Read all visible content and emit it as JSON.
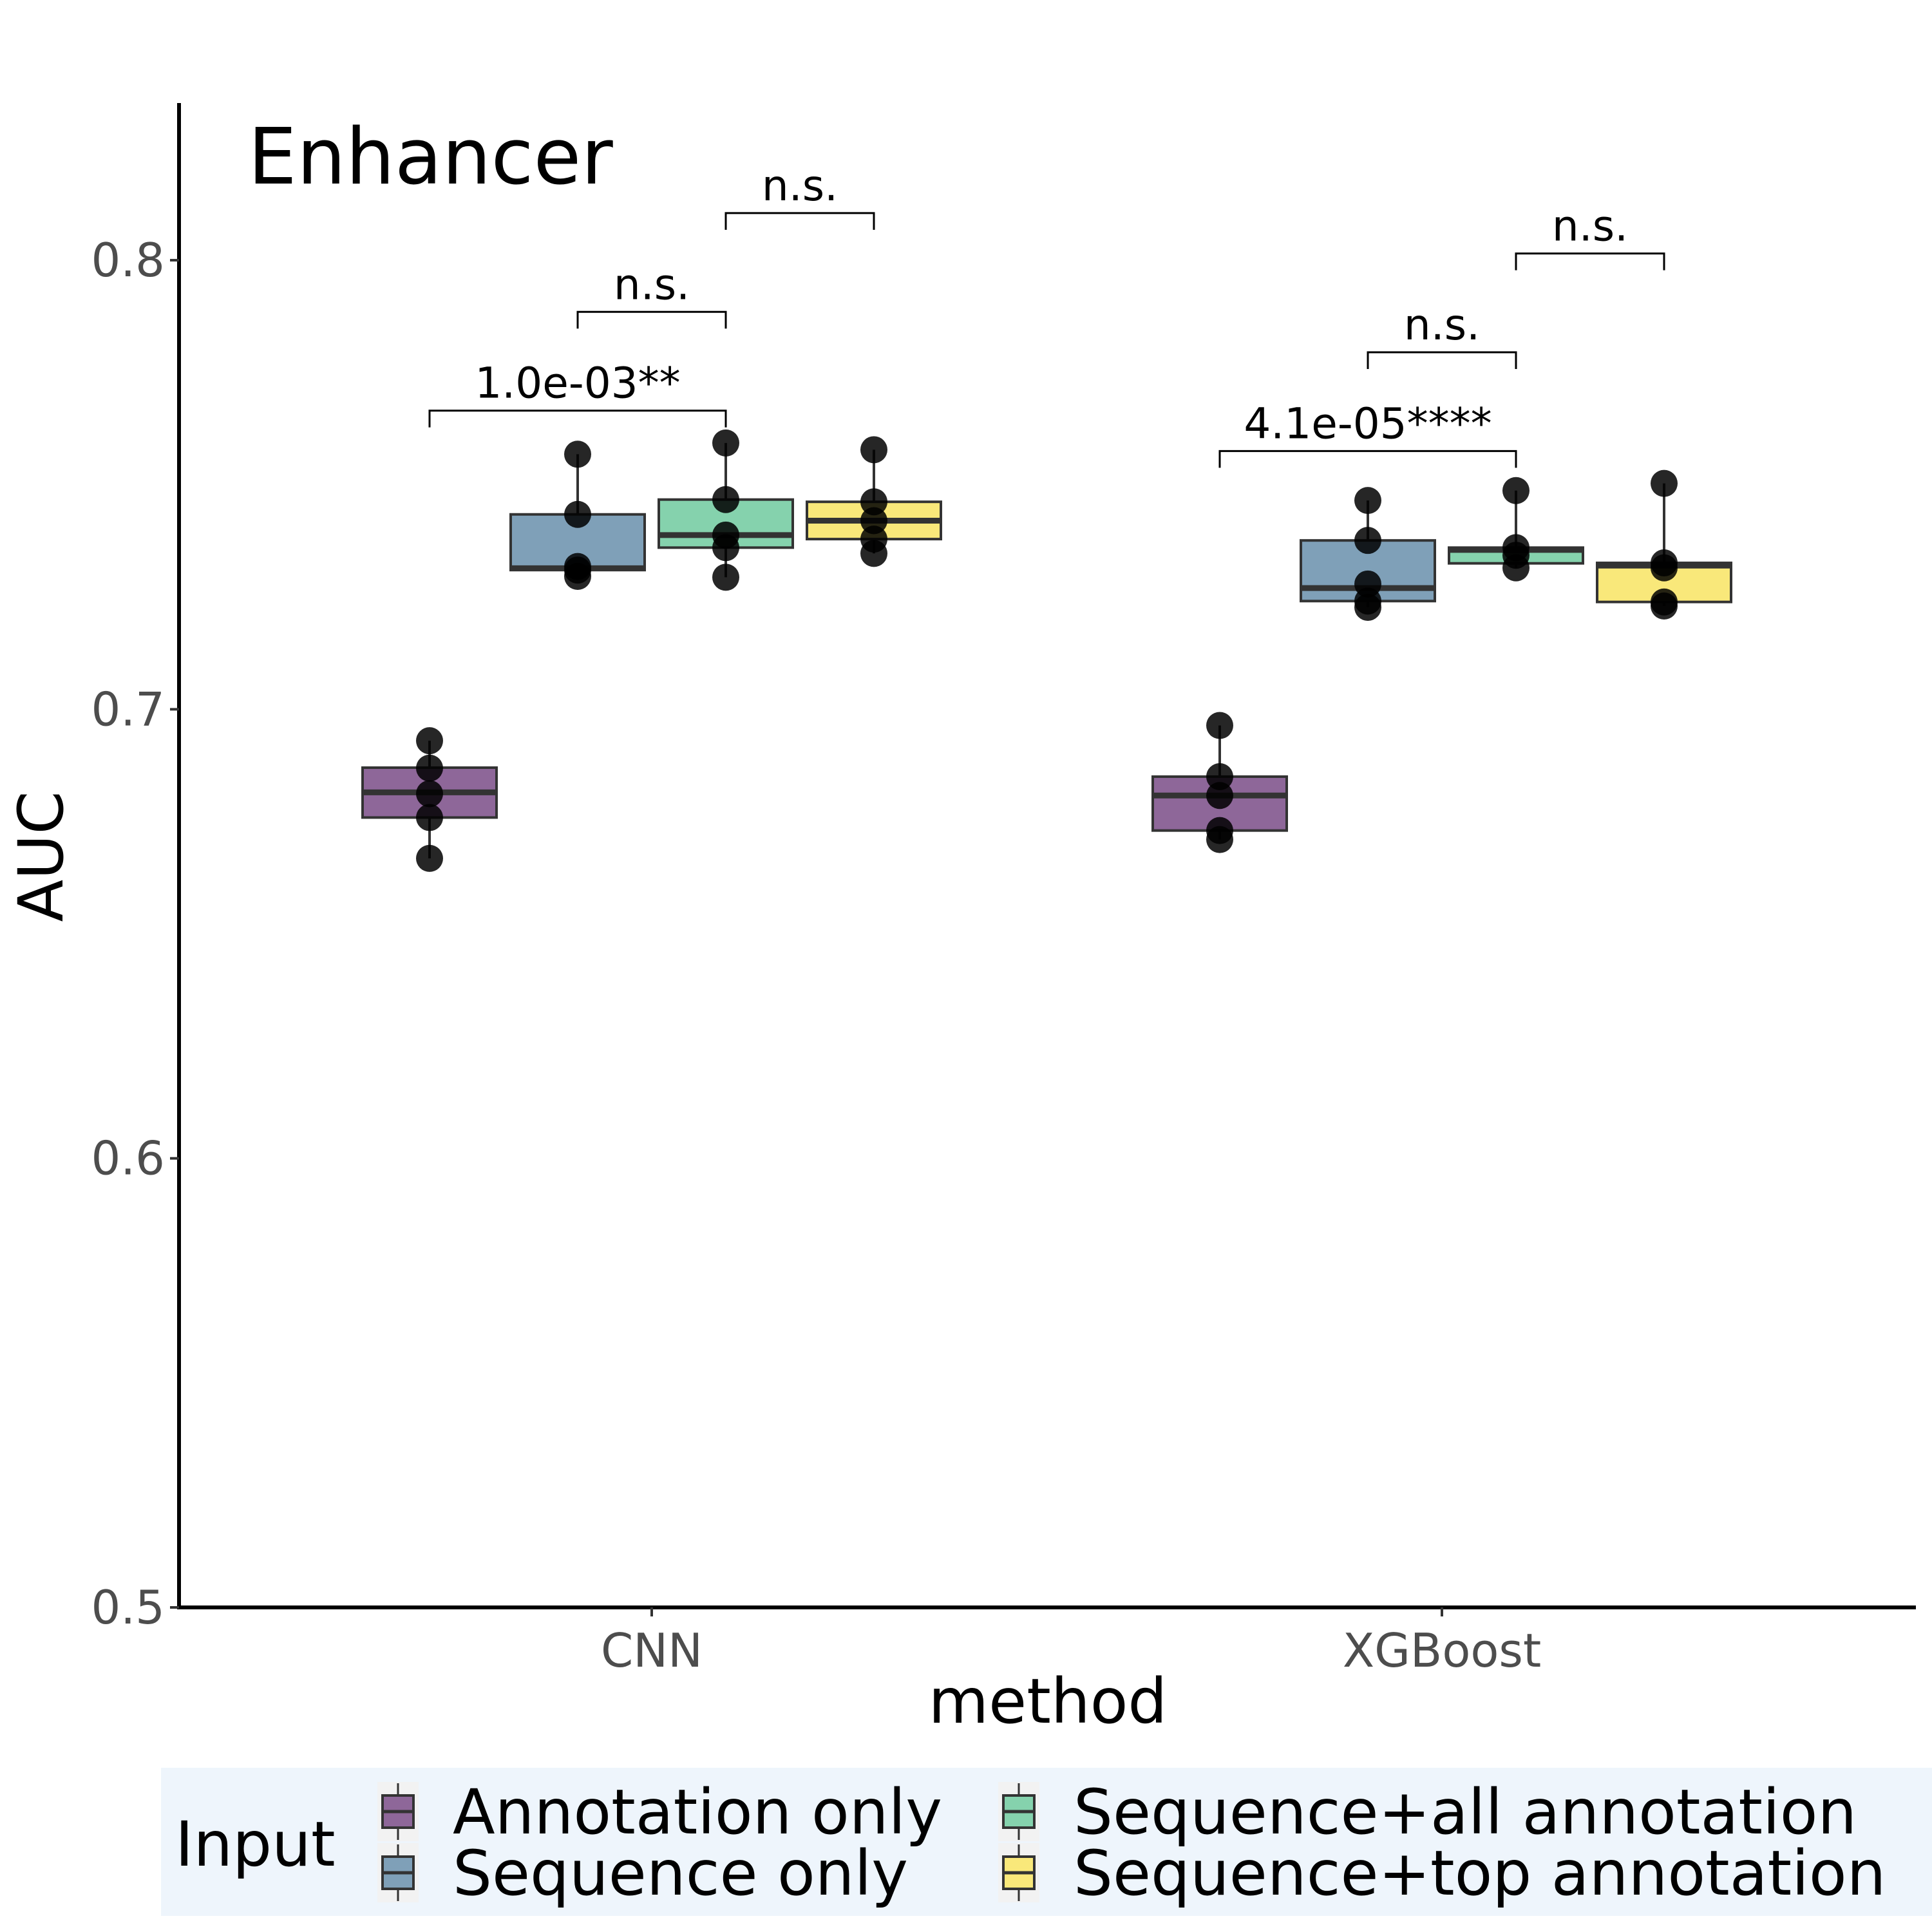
{
  "chart_data": {
    "type": "box",
    "title": "Enhancer",
    "xlabel": "method",
    "ylabel": "AUC",
    "ylim": [
      0.5,
      0.835
    ],
    "yticks": [
      "0.5",
      "0.6",
      "0.7",
      "0.8"
    ],
    "categories": [
      "CNN",
      "XGBoost"
    ],
    "grid": false,
    "legend": {
      "title": "Input",
      "position": "bottom",
      "background": "#eef5fc",
      "entries": [
        "Annotation only",
        "Sequence only",
        "Sequence+all annotation",
        "Sequence+top annotation"
      ]
    },
    "series": [
      {
        "name": "Annotation only",
        "color": "#8e6799",
        "boxes": [
          {
            "category": "CNN",
            "q1": 0.6759,
            "median": 0.6815,
            "q3": 0.687,
            "whisker_low": 0.6668,
            "whisker_high": 0.693,
            "points": [
              0.6668,
              0.6759,
              0.6812,
              0.6869,
              0.693
            ]
          },
          {
            "category": "XGBoost",
            "q1": 0.673,
            "median": 0.6808,
            "q3": 0.685,
            "whisker_low": 0.671,
            "whisker_high": 0.6964,
            "points": [
              0.671,
              0.673,
              0.6808,
              0.685,
              0.6964
            ]
          }
        ]
      },
      {
        "name": "Sequence only",
        "color": "#7fa0b8",
        "boxes": [
          {
            "category": "CNN",
            "q1": 0.731,
            "median": 0.7314,
            "q3": 0.7434,
            "whisker_low": 0.7296,
            "whisker_high": 0.7568,
            "points": [
              0.7296,
              0.731,
              0.7318,
              0.7434,
              0.7568
            ]
          },
          {
            "category": "XGBoost",
            "q1": 0.7241,
            "median": 0.727,
            "q3": 0.7376,
            "whisker_low": 0.7227,
            "whisker_high": 0.7465,
            "points": [
              0.7227,
              0.7241,
              0.7279,
              0.7376,
              0.7465
            ]
          }
        ]
      },
      {
        "name": "Sequence+all annotation",
        "color": "#85d2ad",
        "boxes": [
          {
            "category": "CNN",
            "q1": 0.736,
            "median": 0.7388,
            "q3": 0.7467,
            "whisker_low": 0.7294,
            "whisker_high": 0.7593,
            "points": [
              0.7294,
              0.736,
              0.7388,
              0.7467,
              0.7593
            ]
          },
          {
            "category": "XGBoost",
            "q1": 0.7325,
            "median": 0.7355,
            "q3": 0.736,
            "whisker_low": 0.7315,
            "whisker_high": 0.7487,
            "points": [
              0.7315,
              0.7343,
              0.736,
              0.7487
            ]
          }
        ]
      },
      {
        "name": "Sequence+top annotation",
        "color": "#f9e87a",
        "boxes": [
          {
            "category": "CNN",
            "q1": 0.7379,
            "median": 0.742,
            "q3": 0.7462,
            "whisker_low": 0.7347,
            "whisker_high": 0.7578,
            "points": [
              0.7347,
              0.7379,
              0.742,
              0.7462,
              0.7578
            ]
          },
          {
            "category": "XGBoost",
            "q1": 0.7239,
            "median": 0.732,
            "q3": 0.7326,
            "whisker_low": 0.723,
            "whisker_high": 0.7503,
            "points": [
              0.723,
              0.7239,
              0.7315,
              0.7326,
              0.7503
            ]
          }
        ]
      }
    ],
    "comparisons": [
      {
        "category": "CNN",
        "from": "Annotation only",
        "to": "Sequence+all annotation",
        "label": "1.0e-03**",
        "y": 0.7665
      },
      {
        "category": "CNN",
        "from": "Sequence only",
        "to": "Sequence+all annotation",
        "label": "n.s.",
        "y": 0.7885
      },
      {
        "category": "CNN",
        "from": "Sequence+all annotation",
        "to": "Sequence+top annotation",
        "label": "n.s.",
        "y": 0.8105
      },
      {
        "category": "XGBoost",
        "from": "Annotation only",
        "to": "Sequence+all annotation",
        "label": "4.1e-05****",
        "y": 0.7575
      },
      {
        "category": "XGBoost",
        "from": "Sequence only",
        "to": "Sequence+all annotation",
        "label": "n.s.",
        "y": 0.7795
      },
      {
        "category": "XGBoost",
        "from": "Sequence+all annotation",
        "to": "Sequence+top annotation",
        "label": "n.s.",
        "y": 0.8015
      }
    ]
  }
}
